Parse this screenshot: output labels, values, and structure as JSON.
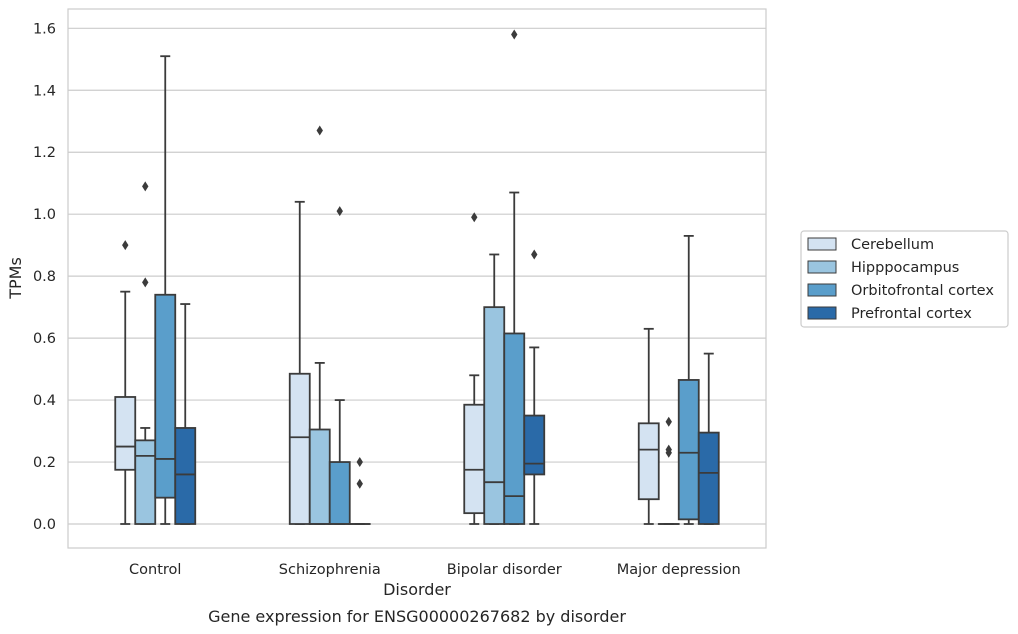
{
  "chart_data": {
    "type": "boxplot",
    "title": "",
    "caption": "Gene expression for ENSG00000267682 by disorder",
    "xlabel": "Disorder",
    "ylabel": "TPMs",
    "ylim": [
      -0.08,
      1.66
    ],
    "yticks": [
      "0.0",
      "0.2",
      "0.4",
      "0.6",
      "0.8",
      "1.0",
      "1.2",
      "1.4",
      "1.6"
    ],
    "grid": "horizontal",
    "legend_position": "right",
    "categories": [
      "Control",
      "Schizophrenia",
      "Bipolar disorder",
      "Major depression"
    ],
    "series": [
      {
        "name": "Cerebellum",
        "color": "#d4e3f2",
        "boxes": [
          {
            "whislo": 0.0,
            "q1": 0.175,
            "med": 0.25,
            "q3": 0.41,
            "whishi": 0.75,
            "fliers": [
              0.9
            ]
          },
          {
            "whislo": 0.0,
            "q1": 0.0,
            "med": 0.28,
            "q3": 0.485,
            "whishi": 1.04,
            "fliers": []
          },
          {
            "whislo": 0.0,
            "q1": 0.035,
            "med": 0.175,
            "q3": 0.385,
            "whishi": 0.48,
            "fliers": [
              0.99
            ]
          },
          {
            "whislo": 0.0,
            "q1": 0.08,
            "med": 0.24,
            "q3": 0.325,
            "whishi": 0.63,
            "fliers": []
          }
        ]
      },
      {
        "name": "Hipppocampus",
        "color": "#9ac5e0",
        "boxes": [
          {
            "whislo": 0.0,
            "q1": 0.0,
            "med": 0.22,
            "q3": 0.27,
            "whishi": 0.31,
            "fliers": [
              0.78,
              1.09
            ]
          },
          {
            "whislo": 0.0,
            "q1": 0.0,
            "med": 0.0,
            "q3": 0.305,
            "whishi": 0.52,
            "fliers": [
              1.27
            ]
          },
          {
            "whislo": 0.0,
            "q1": 0.0,
            "med": 0.135,
            "q3": 0.7,
            "whishi": 0.87,
            "fliers": []
          },
          {
            "whislo": 0.0,
            "q1": 0.0,
            "med": 0.0,
            "q3": 0.0,
            "whishi": 0.0,
            "fliers": [
              0.23,
              0.24,
              0.33
            ]
          }
        ]
      },
      {
        "name": "Orbitofrontal cortex",
        "color": "#5a9ecb",
        "boxes": [
          {
            "whislo": 0.0,
            "q1": 0.085,
            "med": 0.21,
            "q3": 0.74,
            "whishi": 1.51,
            "fliers": []
          },
          {
            "whislo": 0.0,
            "q1": 0.0,
            "med": 0.0,
            "q3": 0.2,
            "whishi": 0.4,
            "fliers": [
              1.01
            ]
          },
          {
            "whislo": 0.0,
            "q1": 0.0,
            "med": 0.09,
            "q3": 0.615,
            "whishi": 1.07,
            "fliers": [
              1.58
            ]
          },
          {
            "whislo": 0.0,
            "q1": 0.015,
            "med": 0.23,
            "q3": 0.465,
            "whishi": 0.93,
            "fliers": []
          }
        ]
      },
      {
        "name": "Prefrontal cortex",
        "color": "#2a6aa8",
        "boxes": [
          {
            "whislo": 0.0,
            "q1": 0.0,
            "med": 0.16,
            "q3": 0.31,
            "whishi": 0.71,
            "fliers": []
          },
          {
            "whislo": 0.0,
            "q1": 0.0,
            "med": 0.0,
            "q3": 0.0,
            "whishi": 0.0,
            "fliers": [
              0.13,
              0.2
            ]
          },
          {
            "whislo": 0.0,
            "q1": 0.16,
            "med": 0.195,
            "q3": 0.35,
            "whishi": 0.57,
            "fliers": [
              0.87
            ]
          },
          {
            "whislo": 0.0,
            "q1": 0.0,
            "med": 0.165,
            "q3": 0.295,
            "whishi": 0.55,
            "fliers": []
          }
        ]
      }
    ]
  }
}
